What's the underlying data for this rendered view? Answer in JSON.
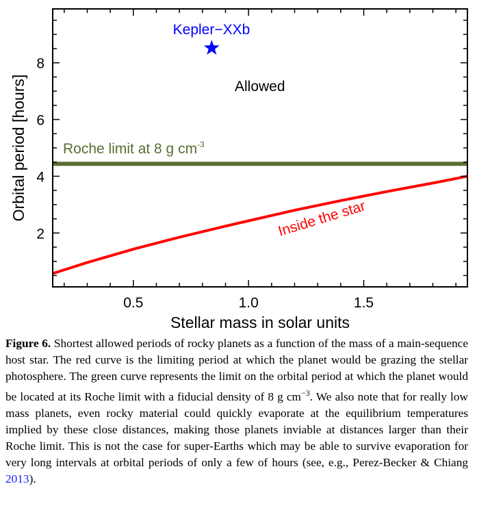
{
  "chart_data": {
    "type": "line",
    "xlabel": "Stellar mass in solar units",
    "ylabel": "Orbital period [hours]",
    "xlim": [
      0.15,
      1.95
    ],
    "ylim": [
      0.1,
      9.9
    ],
    "xticks": [
      0.5,
      1.0,
      1.5
    ],
    "xtick_labels": [
      "0.5",
      "1.0",
      "1.5"
    ],
    "yticks": [
      2,
      4,
      6,
      8
    ],
    "ytick_labels": [
      "2",
      "4",
      "6",
      "8"
    ],
    "grid": false,
    "series": [
      {
        "name": "Inside the star",
        "color": "#ff0000",
        "x": [
          0.15,
          0.3,
          0.5,
          0.7,
          0.9,
          1.0,
          1.2,
          1.4,
          1.6,
          1.8,
          1.95
        ],
        "y": [
          0.57,
          0.96,
          1.43,
          1.85,
          2.24,
          2.43,
          2.8,
          3.14,
          3.46,
          3.76,
          4.0
        ]
      },
      {
        "name": "Roche limit at 8 g cm-3",
        "color": "#5a6e32",
        "x": [
          0.15,
          1.95
        ],
        "y": [
          4.44,
          4.44
        ]
      }
    ],
    "points": [
      {
        "name": "Kepler-XXb",
        "x": 0.84,
        "y": 8.52,
        "marker": "star",
        "color": "#0000ff"
      }
    ],
    "annotations": {
      "allowed": "Allowed",
      "roche_label": "Roche limit at 8 g cm",
      "roche_exp": "-3",
      "inside_label": "Inside the star",
      "planet_label": "Kepler−XXb"
    }
  },
  "caption": {
    "label": "Figure 6.",
    "text_1": " Shortest allowed periods of rocky planets as a function of the mass of a main-sequence host star. The red curve is the limiting period at which the planet would be grazing the stellar photosphere. The green curve represents the limit on the orbital period at which the planet would be located at its Roche limit with a fiducial density of 8 g cm",
    "exp": "−3",
    "text_2": ". We also note that for really low mass planets, even rocky material could quickly evaporate at the equilibrium temperatures implied by these close distances, making those planets inviable at distances larger than their Roche limit. This is not the case for super-Earths which may be able to survive evaporation for very long intervals at orbital periods of only a few of hours (see, e.g., Perez-Becker & Chiang ",
    "cite_year": "2013",
    "text_3": ")."
  }
}
